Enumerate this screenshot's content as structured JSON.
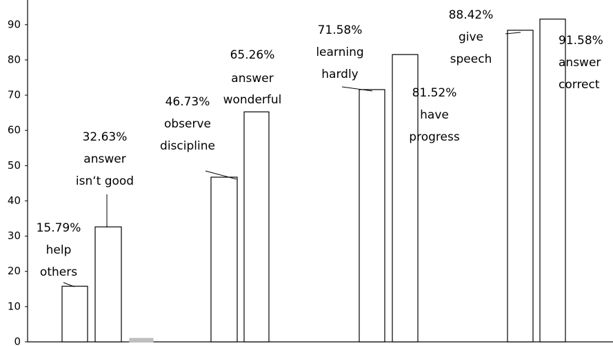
{
  "chart_data": {
    "type": "bar",
    "categories": [
      null,
      null,
      null,
      null,
      null,
      null,
      null,
      null,
      null
    ],
    "values": [
      15.79,
      32.63,
      1,
      46.73,
      65.26,
      71.58,
      81.52,
      88.42,
      91.58
    ],
    "value_labels": [
      "15.79%",
      "32.63%",
      null,
      "46.73%",
      "65.26%",
      "71.58%",
      "81.52%",
      "88.42%",
      "91.58%"
    ],
    "annotations": [
      [
        "help",
        "others"
      ],
      [
        "answer",
        "isn‘t good"
      ],
      null,
      [
        "observe",
        "discipline"
      ],
      [
        "answer",
        "wonderful"
      ],
      [
        "learning",
        "hardly"
      ],
      [
        "have",
        "progress"
      ],
      [
        "give",
        "speech"
      ],
      [
        "answer",
        "correct"
      ]
    ],
    "colors": [
      "#ffffff",
      "#ffffff",
      "#bfbfbf",
      "#ffffff",
      "#ffffff",
      "#ffffff",
      "#ffffff",
      "#ffffff",
      "#ffffff"
    ],
    "ylim": [
      0,
      97
    ],
    "yticks": [
      0,
      10,
      20,
      30,
      40,
      50,
      60,
      70,
      80,
      90
    ],
    "grid": false
  }
}
